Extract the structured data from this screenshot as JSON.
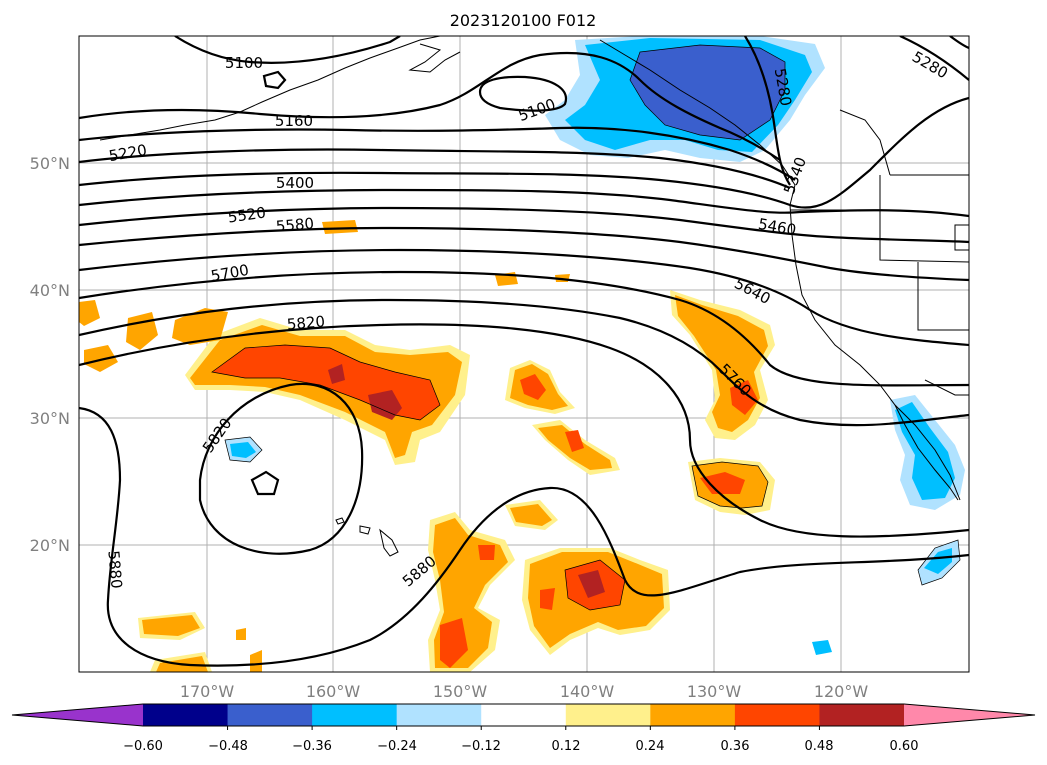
{
  "title": "2023120100 F012",
  "map": {
    "lat_labels": [
      "50°N",
      "40°N",
      "30°N",
      "20°N"
    ],
    "lon_labels": [
      "170°W",
      "160°W",
      "150°W",
      "140°W",
      "130°W",
      "120°W"
    ],
    "gridlines": true,
    "contour_labels": [
      "5100",
      "5100",
      "5160",
      "5220",
      "5280",
      "5280",
      "5340",
      "5400",
      "5460",
      "5520",
      "5580",
      "5640",
      "5700",
      "5760",
      "5820",
      "5820",
      "5880",
      "5880"
    ]
  },
  "colorbar": {
    "ticks": [
      "−0.60",
      "−0.48",
      "−0.36",
      "−0.24",
      "−0.12",
      "0.12",
      "0.24",
      "0.36",
      "0.48",
      "0.60"
    ],
    "colors": [
      "#9933cc",
      "#00008b",
      "#3a5fcd",
      "#00bfff",
      "#b0e2ff",
      "#ffffff",
      "#fff08c",
      "#ffa500",
      "#ff4500",
      "#b22222",
      "#ff88aa"
    ],
    "extend": "both"
  }
}
